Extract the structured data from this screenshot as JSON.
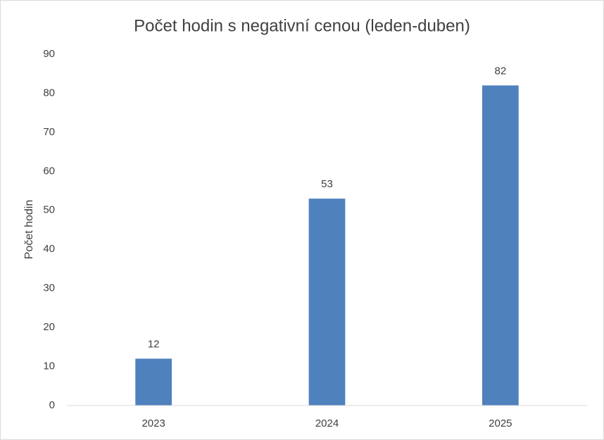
{
  "chart_data": {
    "type": "bar",
    "title": "Počet hodin s negativní cenou (leden-duben)",
    "y_label": "Počet hodin",
    "categories": [
      "2023",
      "2024",
      "2025"
    ],
    "values": [
      12,
      53,
      82
    ],
    "color": "#4f81bd",
    "ylim": [
      0,
      90
    ],
    "yticks": [
      0,
      10,
      20,
      30,
      40,
      50,
      60,
      70,
      80,
      90
    ],
    "grid": false
  }
}
